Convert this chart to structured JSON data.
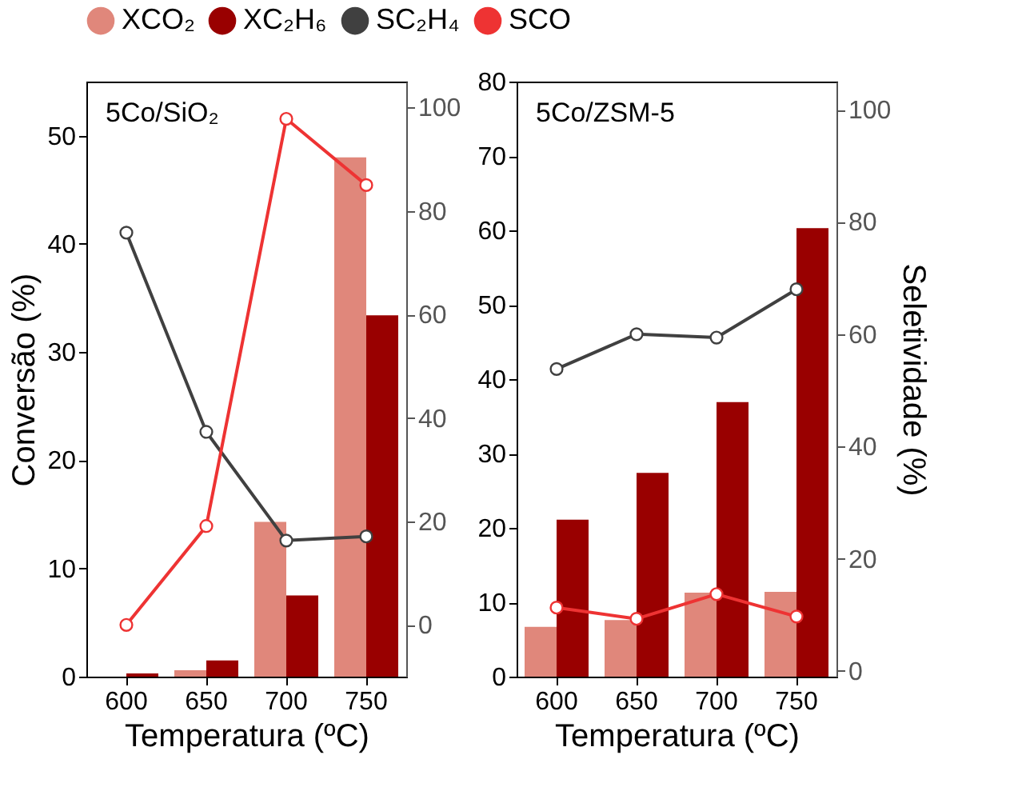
{
  "chart_data": [
    {
      "type": "bar",
      "categories": [
        "600",
        "650",
        "700",
        "750"
      ],
      "xlabel": "Temperatura (ºC)",
      "ylabel": "Conversão (%)",
      "annotations": [
        "5Co/SiO₂"
      ],
      "ylim": [
        0,
        55
      ],
      "yticks": [
        0,
        10,
        20,
        30,
        40,
        50
      ],
      "y2lim": [
        -10,
        105
      ],
      "y2ticks": [
        0,
        20,
        40,
        60,
        80,
        100
      ],
      "legend": "top",
      "grid": false,
      "marker": "circle",
      "line_style": "solid",
      "series": [
        {
          "name": "XCO₂",
          "color": "#e0877b",
          "values": [
            0,
            0.6,
            14.3,
            48.0
          ]
        },
        {
          "name": "XC₂H₆",
          "color": "#990000",
          "values": [
            0.3,
            1.5,
            7.5,
            33.4
          ]
        },
        {
          "name": "SC₂H₄",
          "color": "#404040",
          "type": "line",
          "axis": "y2",
          "values": [
            75.8,
            37.3,
            16.3,
            17.1
          ]
        },
        {
          "name": "SCO",
          "color": "#ee3333",
          "type": "line",
          "axis": "y2",
          "values": [
            0,
            19.1,
            97.8,
            85.0
          ]
        }
      ]
    },
    {
      "type": "bar",
      "categories": [
        "600",
        "650",
        "700",
        "750"
      ],
      "xlabel": "Temperatura (ºC)",
      "y2label": "Seletividade (%)",
      "annotations": [
        "5Co/ZSM-5"
      ],
      "ylim": [
        0,
        80
      ],
      "yticks": [
        0,
        10,
        20,
        30,
        40,
        50,
        60,
        70,
        80
      ],
      "y2lim": [
        -1,
        105
      ],
      "y2ticks": [
        0,
        20,
        40,
        60,
        80,
        100
      ],
      "grid": false,
      "marker": "circle",
      "line_style": "solid",
      "series": [
        {
          "name": "XCO₂",
          "color": "#e0877b",
          "values": [
            6.7,
            7.6,
            11.3,
            11.4
          ]
        },
        {
          "name": "XC₂H₆",
          "color": "#990000",
          "values": [
            21.1,
            27.4,
            36.9,
            60.3
          ]
        },
        {
          "name": "SC₂H₄",
          "color": "#404040",
          "type": "line",
          "axis": "y2",
          "values": [
            53.8,
            60.0,
            59.4,
            68.0
          ]
        },
        {
          "name": "SCO",
          "color": "#ee3333",
          "type": "line",
          "axis": "y2",
          "values": [
            11.3,
            9.3,
            13.7,
            9.7
          ]
        }
      ]
    }
  ]
}
